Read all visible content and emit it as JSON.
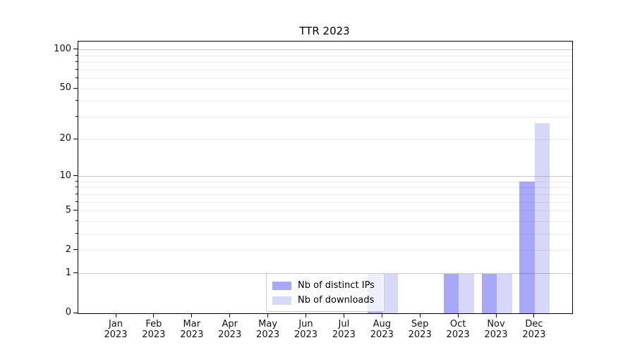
{
  "chart_data": {
    "type": "bar",
    "title": "TTR 2023",
    "categories": [
      "Jan 2023",
      "Feb 2023",
      "Mar 2023",
      "Apr 2023",
      "May 2023",
      "Jun 2023",
      "Jul 2023",
      "Aug 2023",
      "Sep 2023",
      "Oct 2023",
      "Nov 2023",
      "Dec 2023"
    ],
    "series": [
      {
        "name": "Nb of distinct IPs",
        "color": "rgba(0,0,235,0.34)",
        "values": [
          0,
          0,
          0,
          0,
          0,
          0,
          0,
          1,
          0,
          1,
          1,
          9
        ]
      },
      {
        "name": "Nb of downloads",
        "color": "rgba(0,0,215,0.155)",
        "values": [
          0,
          0,
          0,
          0,
          0,
          0,
          0,
          1,
          0,
          1,
          1,
          27
        ]
      }
    ],
    "xlabel": "",
    "ylabel": "",
    "y_axis": {
      "scale": "log1p",
      "lim": [
        0,
        116
      ],
      "tick_labels": [
        0,
        1,
        2,
        5,
        10,
        20,
        50,
        100
      ],
      "major_gridlines": [
        1,
        10,
        100
      ],
      "minor_gridlines": [
        2,
        3,
        4,
        5,
        6,
        7,
        8,
        9,
        20,
        30,
        40,
        50,
        60,
        70,
        80,
        90
      ]
    },
    "legend": {
      "position": "lower center"
    },
    "colors": {
      "grid_major": "#c9c9c9",
      "grid_minor": "#ececec",
      "spine": "#000000",
      "text": "#111111",
      "legend_border": "#cccccc",
      "legend_bg": "rgba(255,255,255,0.8)"
    }
  }
}
